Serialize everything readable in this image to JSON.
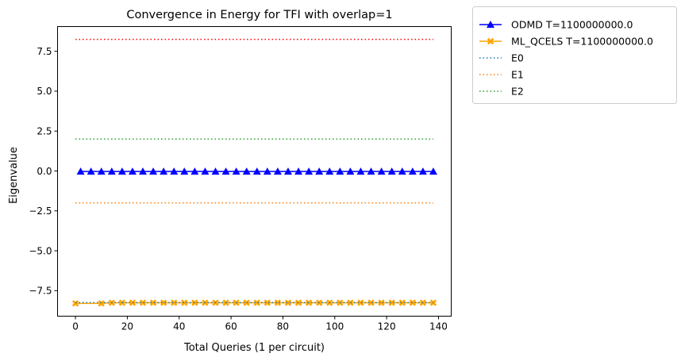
{
  "chart_data": {
    "type": "line",
    "title": "Convergence in Energy for TFI with overlap=1",
    "xlabel": "Total Queries (1 per circuit)",
    "ylabel": "Eigenvalue",
    "xlim": [
      -6.9,
      144.9
    ],
    "ylim": [
      -9.1,
      9.05
    ],
    "xticks": [
      0,
      20,
      40,
      60,
      80,
      100,
      120,
      140
    ],
    "yticks": [
      -7.5,
      -5.0,
      -2.5,
      0.0,
      2.5,
      5.0,
      7.5
    ],
    "xtick_labels": [
      "0",
      "20",
      "40",
      "60",
      "80",
      "100",
      "120",
      "140"
    ],
    "ytick_labels": [
      "−7.5",
      "−5.0",
      "−2.5",
      "0.0",
      "2.5",
      "5.0",
      "7.5"
    ],
    "legend_position": "outside-upper-right",
    "grid": false,
    "series": [
      {
        "name": "ODMD T=1100000000.0",
        "color": "#0000ff",
        "style": "solid",
        "marker": "triangle",
        "x": [
          2,
          6,
          10,
          14,
          18,
          22,
          26,
          30,
          34,
          38,
          42,
          46,
          50,
          54,
          58,
          62,
          66,
          70,
          74,
          78,
          82,
          86,
          90,
          94,
          98,
          102,
          106,
          110,
          114,
          118,
          122,
          126,
          130,
          134,
          138
        ],
        "y": [
          -0.03,
          -0.03,
          -0.03,
          -0.03,
          -0.03,
          -0.03,
          -0.03,
          -0.03,
          -0.03,
          -0.03,
          -0.03,
          -0.03,
          -0.03,
          -0.03,
          -0.03,
          -0.03,
          -0.03,
          -0.03,
          -0.03,
          -0.03,
          -0.03,
          -0.03,
          -0.03,
          -0.03,
          -0.03,
          -0.03,
          -0.03,
          -0.03,
          -0.03,
          -0.03,
          -0.03,
          -0.03,
          -0.03,
          -0.03,
          -0.03
        ]
      },
      {
        "name": "ML_QCELS T=1100000000.0",
        "color": "#ffa500",
        "style": "solid",
        "marker": "x-filled",
        "x": [
          0,
          10,
          14,
          18,
          22,
          26,
          30,
          34,
          38,
          42,
          46,
          50,
          54,
          58,
          62,
          66,
          70,
          74,
          78,
          82,
          86,
          90,
          94,
          98,
          102,
          106,
          110,
          114,
          118,
          122,
          126,
          130,
          134,
          138
        ],
        "y": [
          -8.3,
          -8.3,
          -8.26,
          -8.26,
          -8.26,
          -8.26,
          -8.26,
          -8.26,
          -8.26,
          -8.26,
          -8.26,
          -8.26,
          -8.26,
          -8.26,
          -8.26,
          -8.26,
          -8.26,
          -8.26,
          -8.26,
          -8.26,
          -8.26,
          -8.26,
          -8.26,
          -8.26,
          -8.26,
          -8.26,
          -8.26,
          -8.26,
          -8.26,
          -8.26,
          -8.26,
          -8.26,
          -8.26,
          -8.26
        ]
      },
      {
        "name": "E0",
        "color": "#1f77b4",
        "style": "dotted",
        "marker": "none",
        "x": [
          0,
          138
        ],
        "y": [
          -8.25,
          -8.25
        ]
      },
      {
        "name": "E1",
        "color": "#ff7f0e",
        "style": "dotted",
        "marker": "none",
        "x": [
          0,
          138
        ],
        "y": [
          -2.0,
          -2.0
        ]
      },
      {
        "name": "E2",
        "color": "#2ca02c",
        "style": "dotted",
        "marker": "none",
        "x": [
          0,
          138
        ],
        "y": [
          2.0,
          2.0
        ]
      },
      {
        "name": "",
        "color": "#ff0000",
        "style": "dotted",
        "marker": "none",
        "x": [
          0,
          138
        ],
        "y": [
          8.25,
          8.25
        ]
      }
    ]
  }
}
